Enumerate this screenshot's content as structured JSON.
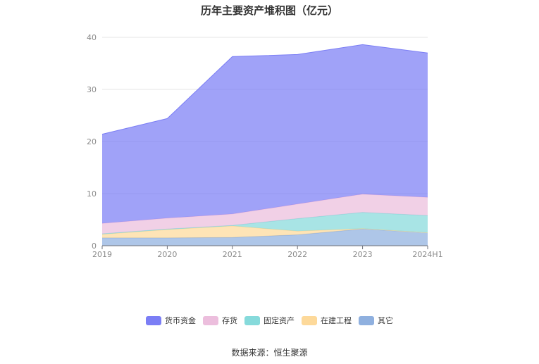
{
  "chart_data": {
    "type": "area",
    "stacked": true,
    "title": "历年主要资产堆积图（亿元）",
    "categories": [
      "2019",
      "2020",
      "2021",
      "2022",
      "2023",
      "2024H1"
    ],
    "ylim": [
      0,
      40
    ],
    "yticks": [
      0,
      10,
      20,
      30,
      40
    ],
    "grid": true,
    "legend_position": "bottom",
    "series": [
      {
        "name": "其它",
        "color": "#8fb0df",
        "values": [
          1.5,
          1.5,
          1.6,
          2.1,
          3.2,
          2.5
        ]
      },
      {
        "name": "在建工程",
        "color": "#fdd99a",
        "values": [
          0.7,
          1.6,
          2.2,
          0.7,
          0.1,
          0.0
        ]
      },
      {
        "name": "固定资产",
        "color": "#86dadb",
        "values": [
          0.1,
          0.1,
          0.1,
          2.4,
          3.1,
          3.3
        ]
      },
      {
        "name": "存货",
        "color": "#ecbedd",
        "values": [
          2.0,
          2.1,
          2.2,
          2.8,
          3.5,
          3.5
        ]
      },
      {
        "name": "货币资金",
        "color": "#7b7ef5",
        "values": [
          17.1,
          19.1,
          30.2,
          28.7,
          28.7,
          27.7
        ]
      }
    ],
    "legend_order": [
      "货币资金",
      "存货",
      "固定资产",
      "在建工程",
      "其它"
    ]
  },
  "footer": {
    "source": "数据来源：恒生聚源"
  }
}
